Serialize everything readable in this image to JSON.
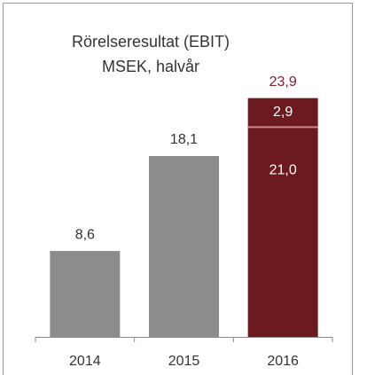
{
  "chart_data": {
    "type": "stacked_bar",
    "title": "Rörelseresultat (EBIT)",
    "subtitle": "MSEK, halvår",
    "categories": [
      "2014",
      "2015",
      "2016"
    ],
    "series": [
      {
        "colors": [
          "#8c8c8c",
          "#8c8c8c",
          "#6d1a1e"
        ],
        "values": [
          8.6,
          18.1,
          21.0
        ],
        "value_labels": [
          "8,6",
          "18,1",
          "21,0"
        ]
      },
      {
        "color": "#6d1a1e",
        "values": [
          null,
          null,
          2.9
        ],
        "value_labels": [
          null,
          null,
          "2,9"
        ]
      }
    ],
    "totals": [
      null,
      null,
      23.9
    ],
    "total_labels": [
      null,
      null,
      "23,9"
    ],
    "total_color": "#8b1a24"
  }
}
